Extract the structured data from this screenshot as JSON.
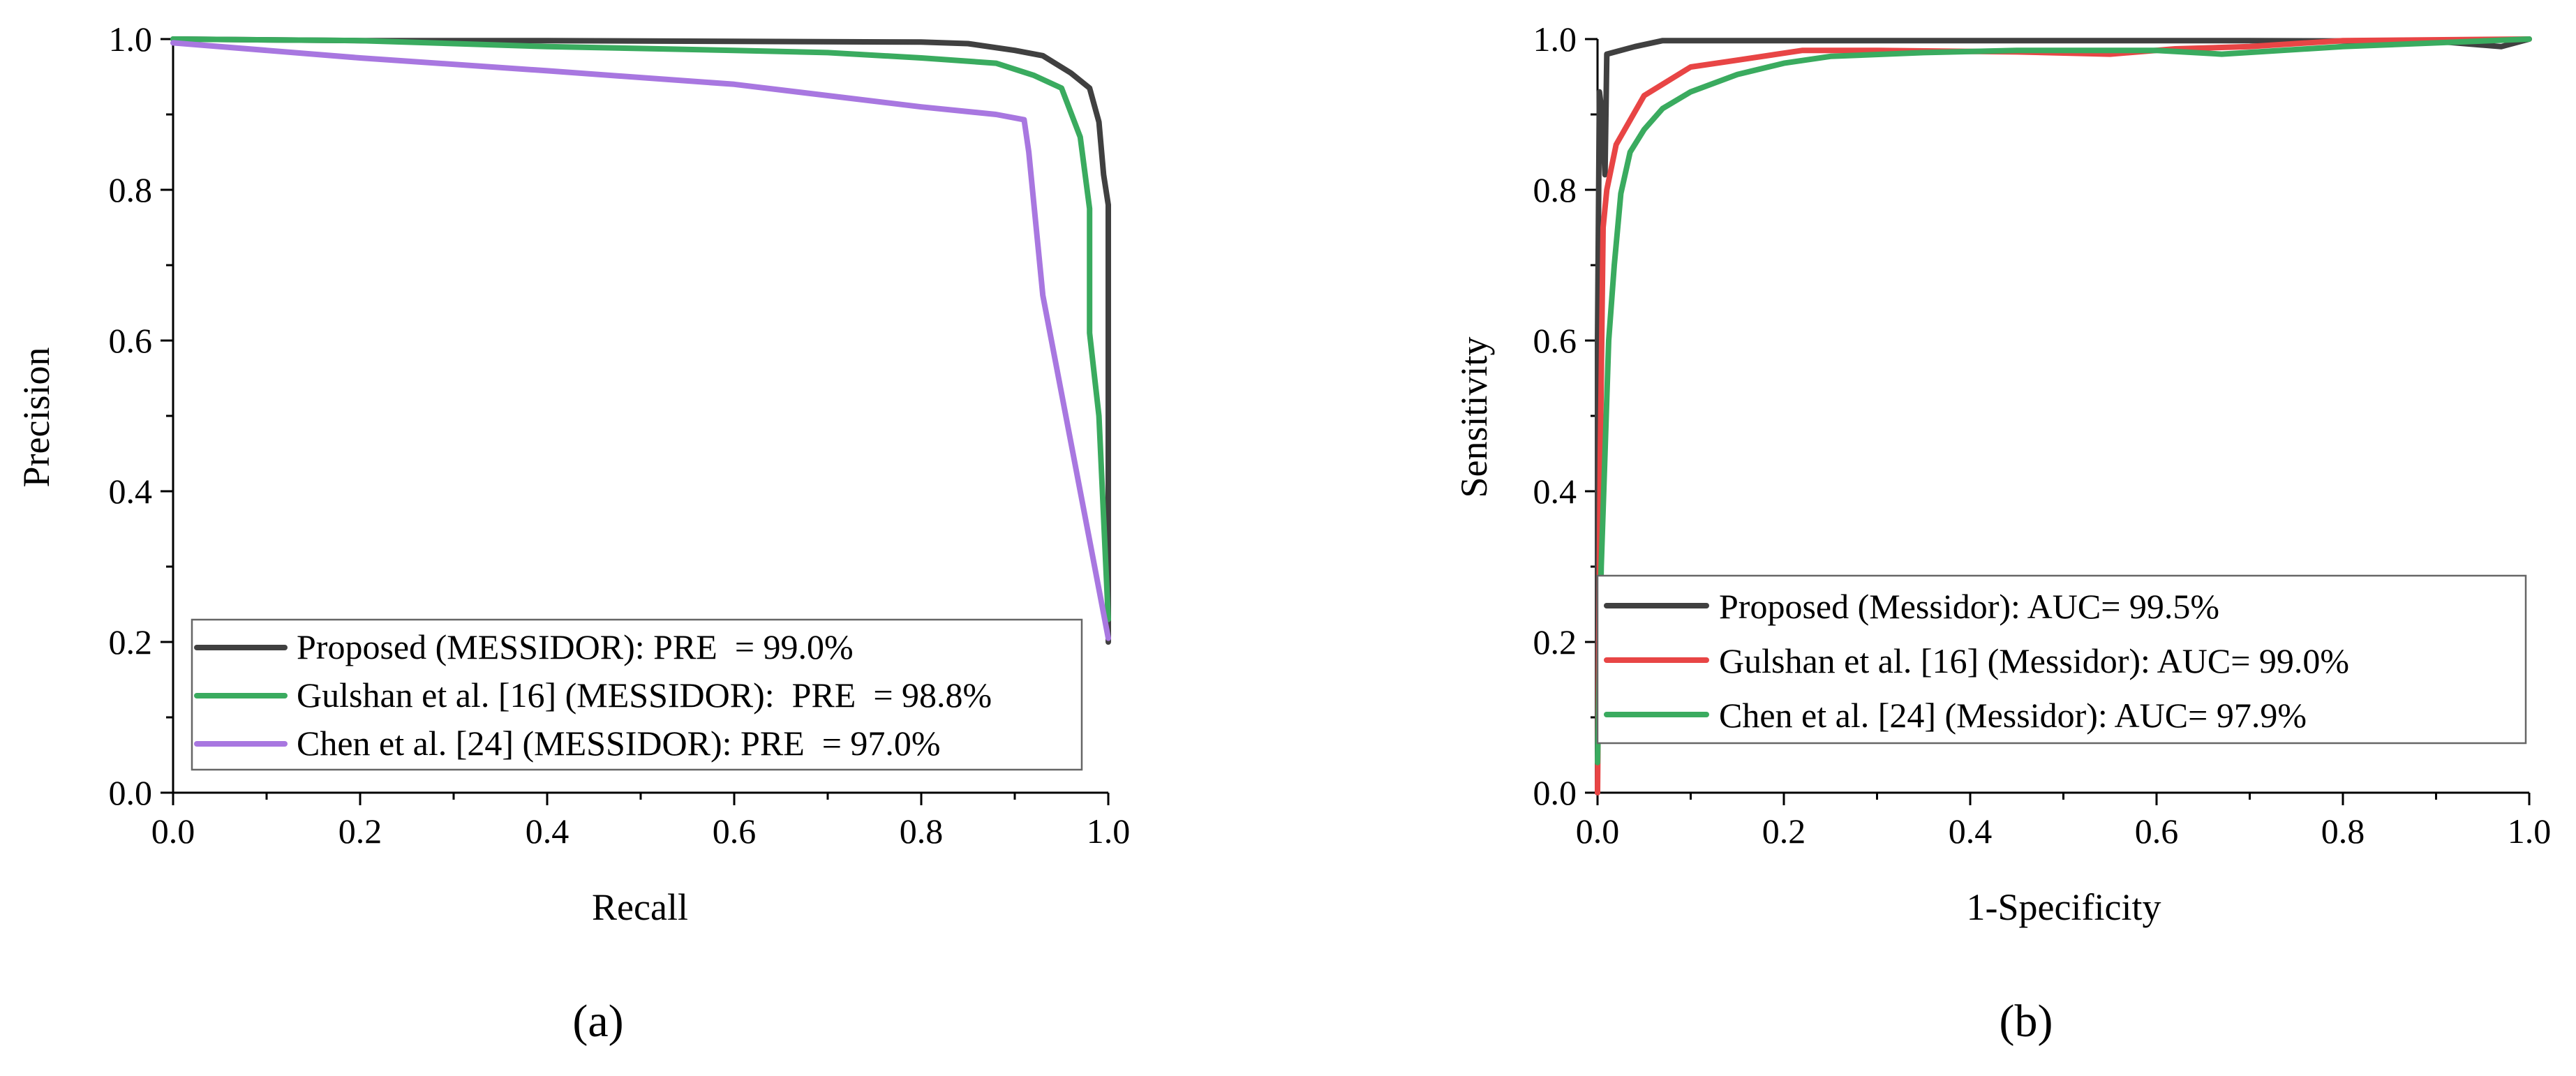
{
  "chart_data": [
    {
      "type": "line",
      "panel_label": "(a)",
      "xlabel": "Recall",
      "ylabel": "Precision",
      "xlim": [
        0,
        1
      ],
      "ylim": [
        0,
        1
      ],
      "xticks": [
        "0.0",
        "0.2",
        "0.4",
        "0.6",
        "0.8",
        "1.0"
      ],
      "yticks": [
        "0.0",
        "0.2",
        "0.4",
        "0.6",
        "0.8",
        "1.0"
      ],
      "legend_position": "bottom-left",
      "series": [
        {
          "name": "Proposed (MESSIDOR): PRE  = 99.0%",
          "color": "#404040",
          "x": [
            0.0,
            0.2,
            0.4,
            0.6,
            0.8,
            0.85,
            0.9,
            0.93,
            0.96,
            0.98,
            0.99,
            0.995,
            1.0,
            1.0
          ],
          "y": [
            1.0,
            0.998,
            0.998,
            0.997,
            0.996,
            0.994,
            0.985,
            0.978,
            0.955,
            0.935,
            0.89,
            0.82,
            0.78,
            0.2
          ]
        },
        {
          "name": "Gulshan et al. [16] (MESSIDOR):  PRE  = 98.8%",
          "color": "#3aab5f",
          "x": [
            0.0,
            0.2,
            0.4,
            0.6,
            0.7,
            0.8,
            0.88,
            0.9,
            0.92,
            0.95,
            0.97,
            0.98,
            0.98,
            0.99,
            1.0
          ],
          "y": [
            1.0,
            0.998,
            0.99,
            0.985,
            0.982,
            0.975,
            0.968,
            0.96,
            0.952,
            0.935,
            0.87,
            0.775,
            0.61,
            0.5,
            0.23
          ]
        },
        {
          "name": "Chen et al. [24] (MESSIDOR): PRE  = 97.0%",
          "color": "#a877e0",
          "x": [
            0.0,
            0.2,
            0.4,
            0.6,
            0.7,
            0.8,
            0.88,
            0.91,
            0.915,
            0.93,
            1.0
          ],
          "y": [
            0.995,
            0.975,
            0.958,
            0.94,
            0.925,
            0.91,
            0.9,
            0.893,
            0.85,
            0.66,
            0.205
          ]
        }
      ]
    },
    {
      "type": "line",
      "panel_label": "(b)",
      "xlabel": "1-Specificity",
      "ylabel": "Sensitivity",
      "xlim": [
        0,
        1
      ],
      "ylim": [
        0,
        1
      ],
      "xticks": [
        "0.0",
        "0.2",
        "0.4",
        "0.6",
        "0.8",
        "1.0"
      ],
      "yticks": [
        "0.0",
        "0.2",
        "0.4",
        "0.6",
        "0.8",
        "1.0"
      ],
      "legend_position": "bottom-left",
      "series": [
        {
          "name": "Proposed (Messidor): AUC= 99.5%",
          "color": "#404040",
          "x": [
            0.0,
            0.0,
            0.002,
            0.005,
            0.008,
            0.01,
            0.04,
            0.07,
            0.1,
            0.3,
            0.5,
            0.7,
            0.9,
            0.97,
            1.0
          ],
          "y": [
            0.0,
            0.6,
            0.93,
            0.9,
            0.82,
            0.98,
            0.99,
            0.998,
            0.998,
            0.998,
            0.998,
            0.998,
            0.997,
            0.99,
            1.0
          ]
        },
        {
          "name": "Gulshan et al. [16] (Messidor): AUC= 99.0%",
          "color": "#e84545",
          "x": [
            0.0,
            0.003,
            0.006,
            0.01,
            0.02,
            0.05,
            0.1,
            0.15,
            0.22,
            0.3,
            0.45,
            0.55,
            0.62,
            0.7,
            0.8,
            1.0
          ],
          "y": [
            0.0,
            0.45,
            0.75,
            0.8,
            0.86,
            0.925,
            0.963,
            0.972,
            0.985,
            0.985,
            0.983,
            0.98,
            0.987,
            0.99,
            0.998,
            1.0
          ]
        },
        {
          "name": "Chen et al. [24] (Messidor): AUC= 97.9%",
          "color": "#3aab5f",
          "x": [
            0.0,
            0.004,
            0.008,
            0.012,
            0.018,
            0.025,
            0.035,
            0.05,
            0.07,
            0.1,
            0.15,
            0.2,
            0.25,
            0.35,
            0.45,
            0.6,
            0.67,
            0.8,
            1.0
          ],
          "y": [
            0.04,
            0.3,
            0.45,
            0.6,
            0.7,
            0.795,
            0.85,
            0.88,
            0.908,
            0.93,
            0.953,
            0.968,
            0.977,
            0.982,
            0.985,
            0.985,
            0.98,
            0.99,
            1.0
          ]
        }
      ]
    }
  ]
}
